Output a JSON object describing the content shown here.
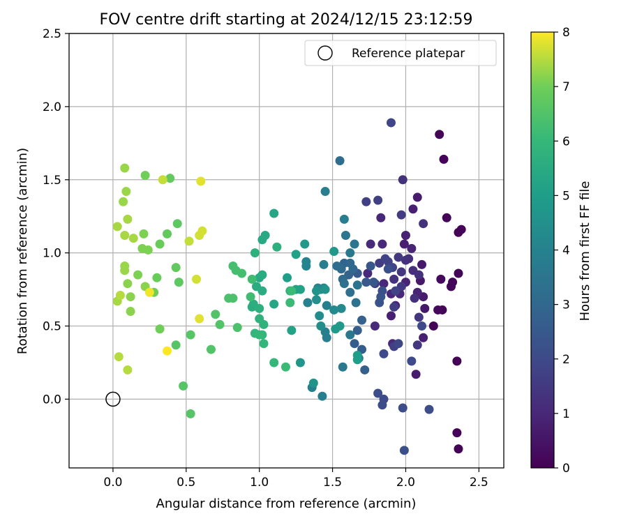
{
  "chart_data": {
    "type": "scatter",
    "title": "FOV centre drift starting at 2024/12/15 23:12:59",
    "xlabel": "Angular distance from reference (arcmin)",
    "ylabel": "Rotation from reference (arcmin)",
    "xlim": [
      -0.3,
      2.67
    ],
    "ylim": [
      -0.47,
      2.5
    ],
    "x_ticks": [
      0.0,
      0.5,
      1.0,
      1.5,
      2.0,
      2.5
    ],
    "x_tick_labels": [
      "0.0",
      "0.5",
      "1.0",
      "1.5",
      "2.0",
      "2.5"
    ],
    "y_ticks": [
      0.0,
      0.5,
      1.0,
      1.5,
      2.0,
      2.5
    ],
    "y_tick_labels": [
      "0.0",
      "0.5",
      "1.0",
      "1.5",
      "2.0",
      "2.5"
    ],
    "grid": true,
    "legend": {
      "placement": "top-right",
      "label": "Reference platepar"
    },
    "reference_point": {
      "x": 0.0,
      "y": 0.0
    },
    "colorbar": {
      "label": "Hours from first FF file",
      "min": 0,
      "max": 8,
      "ticks": [
        0,
        1,
        2,
        3,
        4,
        5,
        6,
        7,
        8
      ],
      "tick_labels": [
        "0",
        "1",
        "2",
        "3",
        "4",
        "5",
        "6",
        "7",
        "8"
      ],
      "colormap": "viridis"
    },
    "points": [
      {
        "x": 2.23,
        "y": 1.81,
        "c": 0.05
      },
      {
        "x": 2.26,
        "y": 1.64,
        "c": 0.1
      },
      {
        "x": 2.28,
        "y": 1.24,
        "c": 0.1
      },
      {
        "x": 2.36,
        "y": 1.14,
        "c": 0.05
      },
      {
        "x": 2.38,
        "y": 1.16,
        "c": 0.05
      },
      {
        "x": 2.36,
        "y": 0.86,
        "c": 0.1
      },
      {
        "x": 2.31,
        "y": 0.77,
        "c": 0.1
      },
      {
        "x": 2.32,
        "y": 0.8,
        "c": 0.1
      },
      {
        "x": 2.24,
        "y": 0.82,
        "c": 0.2
      },
      {
        "x": 2.25,
        "y": 0.61,
        "c": 0.1
      },
      {
        "x": 2.22,
        "y": 0.61,
        "c": 0.2
      },
      {
        "x": 2.19,
        "y": 0.5,
        "c": 0.1
      },
      {
        "x": 2.35,
        "y": 0.26,
        "c": 0.05
      },
      {
        "x": 2.35,
        "y": -0.23,
        "c": 0.05
      },
      {
        "x": 2.36,
        "y": -0.34,
        "c": 0.05
      },
      {
        "x": 2.1,
        "y": 0.81,
        "c": 0.6
      },
      {
        "x": 2.11,
        "y": 0.92,
        "c": 0.6
      },
      {
        "x": 2.13,
        "y": 0.62,
        "c": 0.6
      },
      {
        "x": 2.08,
        "y": 1.38,
        "c": 0.7
      },
      {
        "x": 2.05,
        "y": 1.3,
        "c": 0.8
      },
      {
        "x": 2.0,
        "y": 1.12,
        "c": 0.8
      },
      {
        "x": 1.99,
        "y": 1.06,
        "c": 0.8
      },
      {
        "x": 2.04,
        "y": 1.03,
        "c": 0.9
      },
      {
        "x": 2.12,
        "y": 0.7,
        "c": 0.7
      },
      {
        "x": 2.08,
        "y": 0.73,
        "c": 0.9
      },
      {
        "x": 2.12,
        "y": 0.42,
        "c": 0.8
      },
      {
        "x": 2.07,
        "y": 0.17,
        "c": 0.7
      },
      {
        "x": 2.0,
        "y": 0.8,
        "c": 0.9
      },
      {
        "x": 1.93,
        "y": 0.64,
        "c": 0.9
      },
      {
        "x": 1.9,
        "y": 0.57,
        "c": 0.8
      },
      {
        "x": 1.96,
        "y": 0.72,
        "c": 1.0
      },
      {
        "x": 1.9,
        "y": 0.72,
        "c": 1.0
      },
      {
        "x": 1.85,
        "y": 0.79,
        "c": 1.0
      },
      {
        "x": 1.84,
        "y": 1.06,
        "c": 1.0
      },
      {
        "x": 1.83,
        "y": 1.24,
        "c": 1.0
      },
      {
        "x": 1.76,
        "y": 1.06,
        "c": 1.1
      },
      {
        "x": 1.74,
        "y": 0.86,
        "c": 1.1
      },
      {
        "x": 1.79,
        "y": 0.5,
        "c": 1.1
      },
      {
        "x": 1.91,
        "y": 0.38,
        "c": 1.1
      },
      {
        "x": 2.05,
        "y": 0.88,
        "c": 1.2
      },
      {
        "x": 2.02,
        "y": 0.96,
        "c": 1.2
      },
      {
        "x": 2.09,
        "y": 0.85,
        "c": 1.2
      },
      {
        "x": 2.06,
        "y": 0.69,
        "c": 1.2
      },
      {
        "x": 2.0,
        "y": 0.95,
        "c": 1.3
      },
      {
        "x": 1.98,
        "y": 1.5,
        "c": 1.3
      },
      {
        "x": 2.12,
        "y": 1.2,
        "c": 1.3
      },
      {
        "x": 1.92,
        "y": 0.82,
        "c": 1.3
      },
      {
        "x": 1.97,
        "y": 0.87,
        "c": 1.4
      },
      {
        "x": 2.09,
        "y": 0.56,
        "c": 1.4
      },
      {
        "x": 2.08,
        "y": 0.37,
        "c": 1.4
      },
      {
        "x": 1.97,
        "y": 0.77,
        "c": 1.5
      },
      {
        "x": 1.95,
        "y": 0.97,
        "c": 1.5
      },
      {
        "x": 1.97,
        "y": 1.26,
        "c": 1.6
      },
      {
        "x": 1.92,
        "y": 0.63,
        "c": 1.6
      },
      {
        "x": 1.82,
        "y": 0.93,
        "c": 1.6
      },
      {
        "x": 1.79,
        "y": 0.79,
        "c": 1.6
      },
      {
        "x": 1.73,
        "y": 1.35,
        "c": 1.7
      },
      {
        "x": 1.81,
        "y": 1.36,
        "c": 1.7
      },
      {
        "x": 1.92,
        "y": 0.36,
        "c": 1.7
      },
      {
        "x": 1.91,
        "y": 0.9,
        "c": 1.8
      },
      {
        "x": 1.88,
        "y": 0.94,
        "c": 1.8
      },
      {
        "x": 1.86,
        "y": 0.96,
        "c": 1.8
      },
      {
        "x": 1.93,
        "y": 0.74,
        "c": 1.8
      },
      {
        "x": 1.9,
        "y": 1.89,
        "c": 1.9
      },
      {
        "x": 1.95,
        "y": 0.38,
        "c": 1.9
      },
      {
        "x": 2.11,
        "y": 0.5,
        "c": 2.0
      },
      {
        "x": 2.04,
        "y": 0.26,
        "c": 2.0
      },
      {
        "x": 1.85,
        "y": 0.31,
        "c": 2.0
      },
      {
        "x": 1.81,
        "y": 0.04,
        "c": 2.1
      },
      {
        "x": 1.85,
        "y": 0.0,
        "c": 2.0
      },
      {
        "x": 1.84,
        "y": -0.04,
        "c": 2.1
      },
      {
        "x": 1.98,
        "y": -0.06,
        "c": 2.1
      },
      {
        "x": 2.16,
        "y": -0.07,
        "c": 2.1
      },
      {
        "x": 1.99,
        "y": -0.35,
        "c": 2.2
      },
      {
        "x": 1.88,
        "y": 0.89,
        "c": 2.2
      },
      {
        "x": 1.84,
        "y": 0.74,
        "c": 2.2
      },
      {
        "x": 1.83,
        "y": 0.7,
        "c": 2.3
      },
      {
        "x": 1.82,
        "y": 0.66,
        "c": 2.3
      },
      {
        "x": 1.78,
        "y": 0.8,
        "c": 2.4
      },
      {
        "x": 1.76,
        "y": 0.91,
        "c": 2.4
      },
      {
        "x": 1.73,
        "y": 0.8,
        "c": 2.5
      },
      {
        "x": 1.67,
        "y": 0.86,
        "c": 2.5
      },
      {
        "x": 1.65,
        "y": 0.38,
        "c": 2.6
      },
      {
        "x": 1.7,
        "y": 0.34,
        "c": 2.6
      },
      {
        "x": 1.67,
        "y": 0.47,
        "c": 2.7
      },
      {
        "x": 1.72,
        "y": 0.2,
        "c": 2.7
      },
      {
        "x": 1.7,
        "y": 0.54,
        "c": 2.8
      },
      {
        "x": 1.61,
        "y": 0.85,
        "c": 2.8
      },
      {
        "x": 1.58,
        "y": 0.93,
        "c": 2.9
      },
      {
        "x": 1.62,
        "y": 0.93,
        "c": 3.0
      },
      {
        "x": 1.64,
        "y": 0.89,
        "c": 3.0
      },
      {
        "x": 1.57,
        "y": 0.82,
        "c": 3.1
      },
      {
        "x": 1.56,
        "y": 0.89,
        "c": 3.1
      },
      {
        "x": 1.55,
        "y": 1.63,
        "c": 3.2
      },
      {
        "x": 1.53,
        "y": 0.91,
        "c": 3.2
      },
      {
        "x": 1.58,
        "y": 0.79,
        "c": 3.3
      },
      {
        "x": 1.62,
        "y": 0.73,
        "c": 3.3
      },
      {
        "x": 1.66,
        "y": 0.66,
        "c": 3.4
      },
      {
        "x": 1.67,
        "y": 0.78,
        "c": 3.4
      },
      {
        "x": 1.65,
        "y": 1.06,
        "c": 3.5
      },
      {
        "x": 1.59,
        "y": 1.12,
        "c": 3.5
      },
      {
        "x": 1.62,
        "y": 1.0,
        "c": 3.6
      },
      {
        "x": 1.57,
        "y": 0.22,
        "c": 3.6
      },
      {
        "x": 1.62,
        "y": 0.44,
        "c": 3.6
      },
      {
        "x": 1.68,
        "y": 0.28,
        "c": 3.7
      },
      {
        "x": 1.58,
        "y": 1.23,
        "c": 3.8
      },
      {
        "x": 1.45,
        "y": 1.42,
        "c": 3.8
      },
      {
        "x": 1.44,
        "y": 0.92,
        "c": 3.8
      },
      {
        "x": 1.46,
        "y": 0.42,
        "c": 3.8
      },
      {
        "x": 1.45,
        "y": 0.46,
        "c": 3.9
      },
      {
        "x": 1.46,
        "y": 0.64,
        "c": 3.9
      },
      {
        "x": 1.36,
        "y": 0.08,
        "c": 3.9
      },
      {
        "x": 1.43,
        "y": 0.02,
        "c": 3.9
      },
      {
        "x": 1.33,
        "y": 0.66,
        "c": 4.0
      },
      {
        "x": 1.4,
        "y": 0.76,
        "c": 4.0
      },
      {
        "x": 1.32,
        "y": 0.91,
        "c": 4.1
      },
      {
        "x": 1.32,
        "y": 0.94,
        "c": 4.1
      },
      {
        "x": 1.42,
        "y": 0.75,
        "c": 4.2
      },
      {
        "x": 1.44,
        "y": 0.76,
        "c": 4.2
      },
      {
        "x": 1.51,
        "y": 0.61,
        "c": 4.3
      },
      {
        "x": 1.56,
        "y": 0.62,
        "c": 4.3
      },
      {
        "x": 1.41,
        "y": 0.57,
        "c": 4.4
      },
      {
        "x": 1.42,
        "y": 0.5,
        "c": 4.4
      },
      {
        "x": 1.39,
        "y": 0.68,
        "c": 4.5
      },
      {
        "x": 1.39,
        "y": 0.74,
        "c": 4.6
      },
      {
        "x": 1.45,
        "y": 0.75,
        "c": 4.6
      },
      {
        "x": 1.37,
        "y": 0.11,
        "c": 4.6
      },
      {
        "x": 1.28,
        "y": 0.25,
        "c": 4.7
      },
      {
        "x": 1.31,
        "y": 1.06,
        "c": 4.8
      },
      {
        "x": 1.51,
        "y": 1.01,
        "c": 4.8
      },
      {
        "x": 1.55,
        "y": 0.5,
        "c": 4.9
      },
      {
        "x": 1.52,
        "y": 0.48,
        "c": 4.9
      },
      {
        "x": 1.67,
        "y": 0.3,
        "c": 5.0
      },
      {
        "x": 1.67,
        "y": 0.27,
        "c": 5.0
      },
      {
        "x": 1.19,
        "y": 0.83,
        "c": 5.0
      },
      {
        "x": 1.25,
        "y": 0.75,
        "c": 5.1
      },
      {
        "x": 1.25,
        "y": 0.99,
        "c": 5.1
      },
      {
        "x": 1.28,
        "y": 0.75,
        "c": 5.2
      },
      {
        "x": 1.22,
        "y": 0.47,
        "c": 5.2
      },
      {
        "x": 1.1,
        "y": 1.27,
        "c": 5.3
      },
      {
        "x": 1.1,
        "y": 0.65,
        "c": 5.3
      },
      {
        "x": 1.04,
        "y": 1.12,
        "c": 5.4
      },
      {
        "x": 1.02,
        "y": 1.09,
        "c": 5.4
      },
      {
        "x": 1.0,
        "y": 0.83,
        "c": 5.4
      },
      {
        "x": 1.02,
        "y": 0.85,
        "c": 5.5
      },
      {
        "x": 0.98,
        "y": 0.77,
        "c": 5.5
      },
      {
        "x": 1.02,
        "y": 0.74,
        "c": 5.5
      },
      {
        "x": 0.95,
        "y": 0.63,
        "c": 5.6
      },
      {
        "x": 0.96,
        "y": 0.65,
        "c": 5.6
      },
      {
        "x": 1.0,
        "y": 0.62,
        "c": 5.7
      },
      {
        "x": 0.97,
        "y": 1.0,
        "c": 5.7
      },
      {
        "x": 1.12,
        "y": 1.04,
        "c": 5.7
      },
      {
        "x": 1.21,
        "y": 0.74,
        "c": 5.7
      },
      {
        "x": 1.03,
        "y": 0.51,
        "c": 5.8
      },
      {
        "x": 1.0,
        "y": 0.55,
        "c": 5.8
      },
      {
        "x": 1.02,
        "y": 0.44,
        "c": 5.9
      },
      {
        "x": 1.03,
        "y": 0.38,
        "c": 5.9
      },
      {
        "x": 0.97,
        "y": 0.45,
        "c": 5.9
      },
      {
        "x": 1.0,
        "y": 0.44,
        "c": 6.0
      },
      {
        "x": 1.1,
        "y": 0.25,
        "c": 6.0
      },
      {
        "x": 1.18,
        "y": 0.22,
        "c": 6.1
      },
      {
        "x": 1.21,
        "y": 0.66,
        "c": 6.1
      },
      {
        "x": 1.22,
        "y": 0.74,
        "c": 6.1
      },
      {
        "x": 0.94,
        "y": 0.7,
        "c": 6.2
      },
      {
        "x": 0.95,
        "y": 0.82,
        "c": 6.2
      },
      {
        "x": 0.88,
        "y": 0.86,
        "c": 6.3
      },
      {
        "x": 0.84,
        "y": 0.88,
        "c": 6.3
      },
      {
        "x": 0.82,
        "y": 0.91,
        "c": 6.3
      },
      {
        "x": 0.82,
        "y": 0.69,
        "c": 6.4
      },
      {
        "x": 0.79,
        "y": 0.69,
        "c": 6.4
      },
      {
        "x": 0.85,
        "y": 0.49,
        "c": 6.4
      },
      {
        "x": 0.73,
        "y": 0.51,
        "c": 6.5
      },
      {
        "x": 0.7,
        "y": 0.58,
        "c": 6.5
      },
      {
        "x": 0.67,
        "y": 0.34,
        "c": 6.5
      },
      {
        "x": 0.53,
        "y": 0.44,
        "c": 6.6
      },
      {
        "x": 0.43,
        "y": 0.37,
        "c": 6.6
      },
      {
        "x": 0.48,
        "y": 0.09,
        "c": 6.6
      },
      {
        "x": 0.53,
        "y": -0.1,
        "c": 6.6
      },
      {
        "x": 0.44,
        "y": 1.2,
        "c": 6.7
      },
      {
        "x": 0.45,
        "y": 0.8,
        "c": 6.7
      },
      {
        "x": 0.43,
        "y": 0.9,
        "c": 6.8
      },
      {
        "x": 0.37,
        "y": 1.13,
        "c": 6.8
      },
      {
        "x": 0.39,
        "y": 1.51,
        "c": 6.8
      },
      {
        "x": 0.32,
        "y": 1.06,
        "c": 6.9
      },
      {
        "x": 0.3,
        "y": 0.83,
        "c": 6.9
      },
      {
        "x": 0.28,
        "y": 0.73,
        "c": 7.0
      },
      {
        "x": 0.32,
        "y": 0.48,
        "c": 7.0
      },
      {
        "x": 0.22,
        "y": 1.53,
        "c": 7.0
      },
      {
        "x": 0.21,
        "y": 1.13,
        "c": 7.1
      },
      {
        "x": 0.24,
        "y": 1.02,
        "c": 7.1
      },
      {
        "x": 0.2,
        "y": 1.03,
        "c": 7.1
      },
      {
        "x": 0.17,
        "y": 0.85,
        "c": 7.1
      },
      {
        "x": 0.22,
        "y": 0.77,
        "c": 7.2
      },
      {
        "x": 0.12,
        "y": 0.6,
        "c": 7.2
      },
      {
        "x": 0.12,
        "y": 0.7,
        "c": 7.2
      },
      {
        "x": 0.1,
        "y": 0.79,
        "c": 7.2
      },
      {
        "x": 0.08,
        "y": 0.88,
        "c": 7.3
      },
      {
        "x": 0.08,
        "y": 0.91,
        "c": 7.3
      },
      {
        "x": 0.08,
        "y": 1.58,
        "c": 7.3
      },
      {
        "x": 0.09,
        "y": 1.42,
        "c": 7.3
      },
      {
        "x": 0.07,
        "y": 1.35,
        "c": 7.3
      },
      {
        "x": 0.1,
        "y": 1.23,
        "c": 7.4
      },
      {
        "x": 0.08,
        "y": 1.12,
        "c": 7.4
      },
      {
        "x": 0.14,
        "y": 1.1,
        "c": 7.4
      },
      {
        "x": 0.03,
        "y": 1.18,
        "c": 7.4
      },
      {
        "x": 0.03,
        "y": 0.67,
        "c": 7.4
      },
      {
        "x": 0.05,
        "y": 0.71,
        "c": 7.5
      },
      {
        "x": 0.04,
        "y": 0.29,
        "c": 7.5
      },
      {
        "x": 0.1,
        "y": 0.2,
        "c": 7.5
      },
      {
        "x": 0.34,
        "y": 1.5,
        "c": 7.6
      },
      {
        "x": 0.52,
        "y": 1.08,
        "c": 7.6
      },
      {
        "x": 0.59,
        "y": 1.12,
        "c": 7.7
      },
      {
        "x": 0.61,
        "y": 1.15,
        "c": 7.7
      },
      {
        "x": 0.57,
        "y": 0.82,
        "c": 7.7
      },
      {
        "x": 0.6,
        "y": 1.49,
        "c": 7.8
      },
      {
        "x": 0.59,
        "y": 0.55,
        "c": 7.8
      },
      {
        "x": 0.25,
        "y": 0.73,
        "c": 7.9
      },
      {
        "x": 0.37,
        "y": 0.33,
        "c": 8.0
      }
    ]
  }
}
